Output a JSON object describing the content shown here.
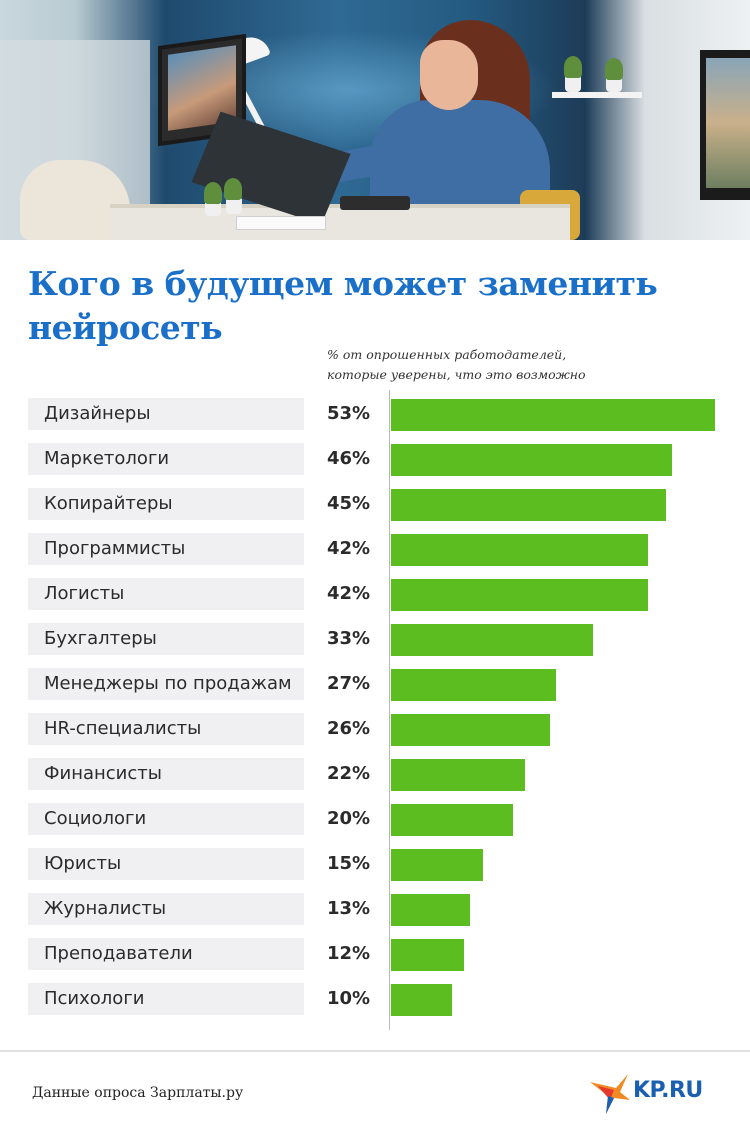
{
  "title": "Кого в будущем может заменить нейросеть",
  "subtitle": "% от опрошенных работодателей, которые уверены, что это возможно",
  "source": "Данные опроса Зарплаты.ру",
  "logo_text": "KP.RU",
  "colors": {
    "title": "#1a6fc9",
    "bar": "#5cbd20",
    "label_background": "#f0f0f3",
    "logo_blue": "#1a5fb0",
    "logo_orange": "#f08a24",
    "logo_red": "#e53a2b"
  },
  "chart_data": {
    "type": "bar",
    "orientation": "horizontal",
    "title": "Кого в будущем может заменить нейросеть",
    "subtitle": "% от опрошенных работодателей, которые уверены, что это возможно",
    "categories": [
      "Дизайнеры",
      "Маркетологи",
      "Копирайтеры",
      "Программисты",
      "Логисты",
      "Бухгалтеры",
      "Менеджеры по продажам",
      "HR-специалисты",
      "Финансисты",
      "Социологи",
      "Юристы",
      "Журналисты",
      "Преподаватели",
      "Психологи"
    ],
    "values": [
      53,
      46,
      45,
      42,
      42,
      33,
      27,
      26,
      22,
      20,
      15,
      13,
      12,
      10
    ],
    "value_labels": [
      "53%",
      "46%",
      "45%",
      "42%",
      "42%",
      "33%",
      "27%",
      "26%",
      "22%",
      "20%",
      "15%",
      "13%",
      "12%",
      "10%"
    ],
    "xlim": [
      0,
      53
    ],
    "grid": false,
    "legend": "none"
  }
}
